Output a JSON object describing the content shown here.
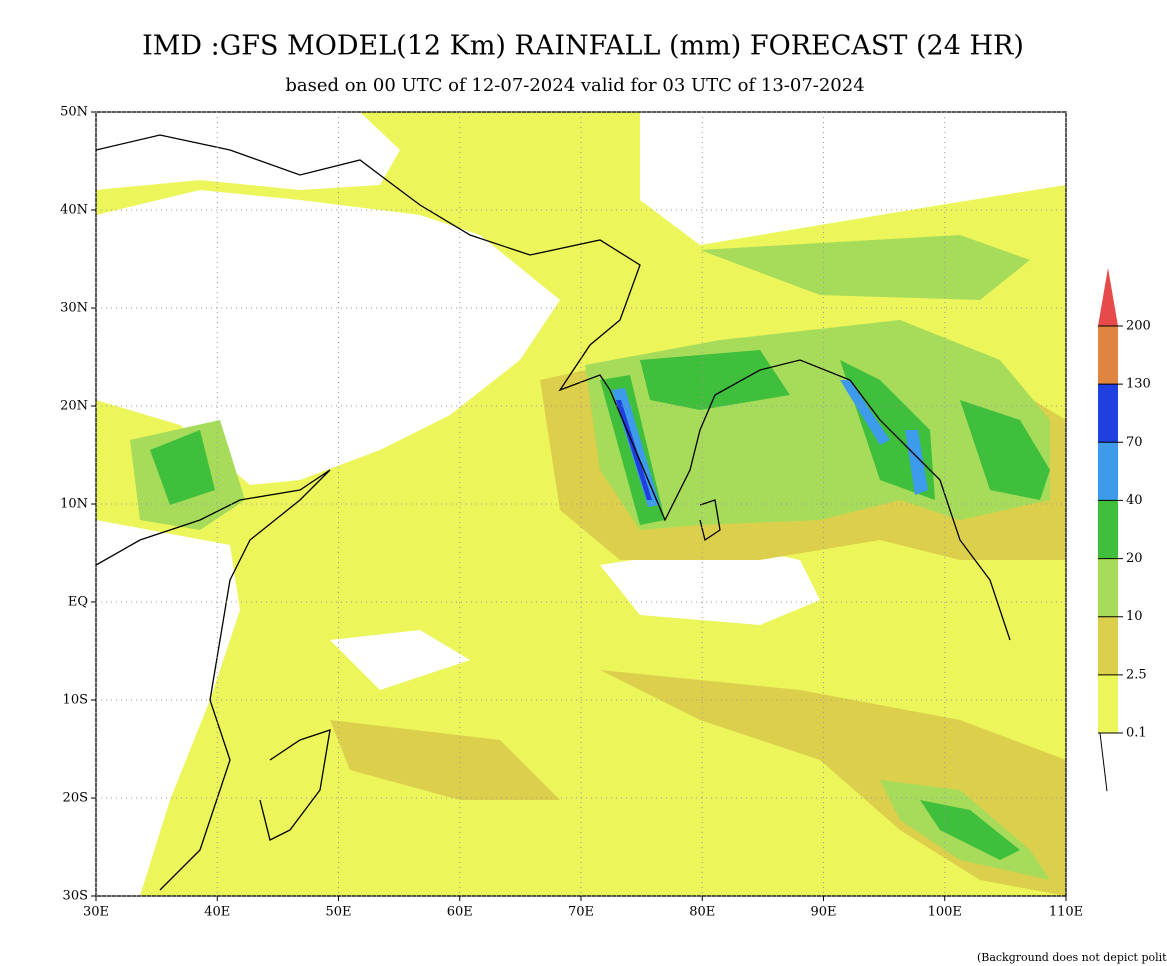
{
  "map": {
    "title": "IMD :GFS MODEL(12 Km) RAINFALL (mm) FORECAST (24 HR)",
    "subtitle": "based on 00 UTC of 12-07-2024 valid for 03 UTC of 13-07-2024",
    "lat_lim": [
      -30,
      50
    ],
    "lon_lim": [
      30,
      110
    ],
    "lat_ticks": [
      {
        "value": 50,
        "label": "50N"
      },
      {
        "value": 40,
        "label": "40N"
      },
      {
        "value": 30,
        "label": "30N"
      },
      {
        "value": 20,
        "label": "20N"
      },
      {
        "value": 10,
        "label": "10N"
      },
      {
        "value": 0,
        "label": "EQ"
      },
      {
        "value": -10,
        "label": "10S"
      },
      {
        "value": -20,
        "label": "20S"
      },
      {
        "value": -30,
        "label": "30S"
      }
    ],
    "lon_ticks": [
      {
        "value": 30,
        "label": "30E"
      },
      {
        "value": 40,
        "label": "40E"
      },
      {
        "value": 50,
        "label": "50E"
      },
      {
        "value": 60,
        "label": "60E"
      },
      {
        "value": 70,
        "label": "70E"
      },
      {
        "value": 80,
        "label": "80E"
      },
      {
        "value": 90,
        "label": "90E"
      },
      {
        "value": 100,
        "label": "100E"
      },
      {
        "value": 110,
        "label": "110E"
      }
    ],
    "legend": {
      "levels": [
        0.1,
        2.5,
        10,
        20,
        40,
        70,
        130,
        200
      ],
      "colors": [
        "#ecf55a",
        "#dccf4c",
        "#a6dc5a",
        "#3fbf3c",
        "#3e9aea",
        "#1f3fe0",
        "#e0853f",
        "#e64a4a"
      ]
    },
    "footnote": "(Background does not depict political boundary)"
  }
}
